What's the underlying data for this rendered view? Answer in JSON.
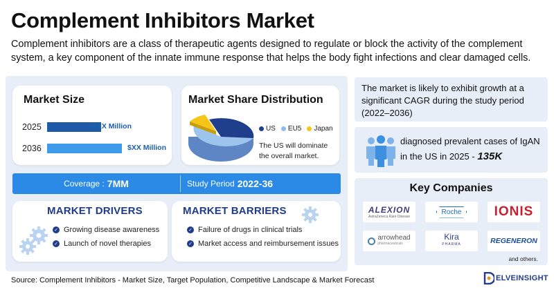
{
  "title": "Complement Inhibitors Market",
  "description": "Complement inhibitors are a class of therapeutic agents designed to regulate or block the activity of the complement system, a key component of the innate immune response that helps the body fight infections and clear damaged cells.",
  "market_size": {
    "title": "Market Size",
    "bars": [
      {
        "year": "2025",
        "value": "$XX Million",
        "color": "#1f5aa8"
      },
      {
        "year": "2036",
        "value": "$XX Million",
        "color": "#3d9be9"
      }
    ]
  },
  "market_share": {
    "title": "Market Share Distribution",
    "legend": [
      {
        "label": "US",
        "color": "#1f3f8c"
      },
      {
        "label": "EU5",
        "color": "#8fbcea"
      },
      {
        "label": "Japan",
        "color": "#f5c518"
      }
    ],
    "note": "The US will dominate the overall market."
  },
  "coverage": {
    "label": "Coverage :",
    "value": "7MM"
  },
  "study_period": {
    "label": "Study Period",
    "value": "2022-36"
  },
  "drivers": {
    "title": "MARKET DRIVERS",
    "items": [
      "Growing disease awareness",
      "Launch of novel therapies"
    ]
  },
  "barriers": {
    "title": "MARKET BARRIERS",
    "items": [
      "Failure of drugs in clinical trials",
      "Market access and reimbursement issues"
    ]
  },
  "growth": "The market is likely to exhibit growth at a significant CAGR during the study period (2022–2036)",
  "igan": {
    "text": "diagnosed prevalent cases of IgAN in the US in 2025 -",
    "value": "135K"
  },
  "key_companies": {
    "title": "Key Companies",
    "logos": {
      "alexion": "ALEXION",
      "alexion_sub": "AstraZeneca Rare Disease",
      "roche": "Roche",
      "ionis": "IONIS",
      "arrowhead": "arrowhead",
      "arrowhead_sub": "pharmaceuticals",
      "kira": "Kira",
      "kira_sub": "PHARMA",
      "regeneron": "REGENERON"
    },
    "others": "and others."
  },
  "source": "Source: Complement Inhibitors - Market Size, Target Population, Competitive Landscape & Market Forecast",
  "brand": "ELVEINSIGHT"
}
